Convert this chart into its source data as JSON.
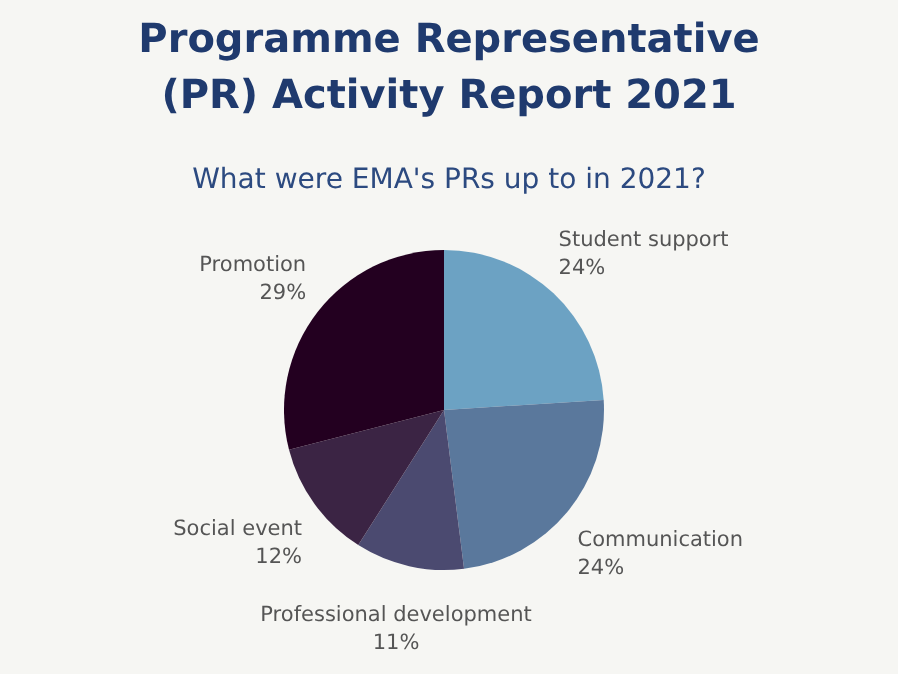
{
  "chart_data": {
    "type": "pie",
    "title": "Programme Representative (PR) Activity Report 2021",
    "subtitle": "What were EMA's PRs up to in 2021?",
    "categories": [
      "Student support",
      "Communication",
      "Professional development",
      "Social event",
      "Promotion"
    ],
    "values": [
      24,
      24,
      11,
      12,
      29
    ],
    "value_labels": [
      "24%",
      "24%",
      "11%",
      "12%",
      "29%"
    ],
    "colors": [
      "#6ca2c3",
      "#5a789c",
      "#4b4a70",
      "#3b2444",
      "#230020"
    ]
  }
}
